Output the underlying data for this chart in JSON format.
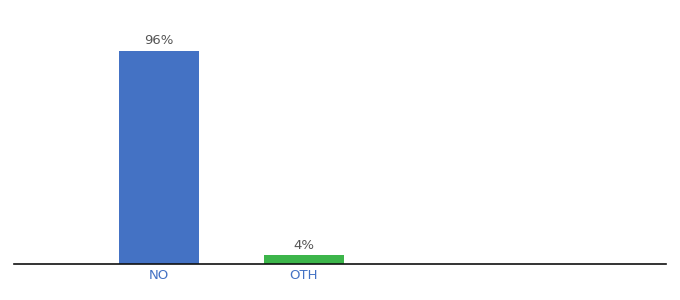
{
  "categories": [
    "NO",
    "OTH"
  ],
  "values": [
    96,
    4
  ],
  "bar_colors": [
    "#4472c4",
    "#3cb54a"
  ],
  "label_texts": [
    "96%",
    "4%"
  ],
  "background_color": "#ffffff",
  "ylim": [
    0,
    108
  ],
  "bar_width": 0.55,
  "figsize": [
    6.8,
    3.0
  ],
  "dpi": 100,
  "label_fontsize": 9.5,
  "tick_fontsize": 9.5,
  "spine_color": "#111111",
  "label_color": "#555555",
  "tick_color": "#4472c4",
  "x_positions": [
    1,
    2
  ],
  "xlim": [
    0.0,
    4.5
  ]
}
